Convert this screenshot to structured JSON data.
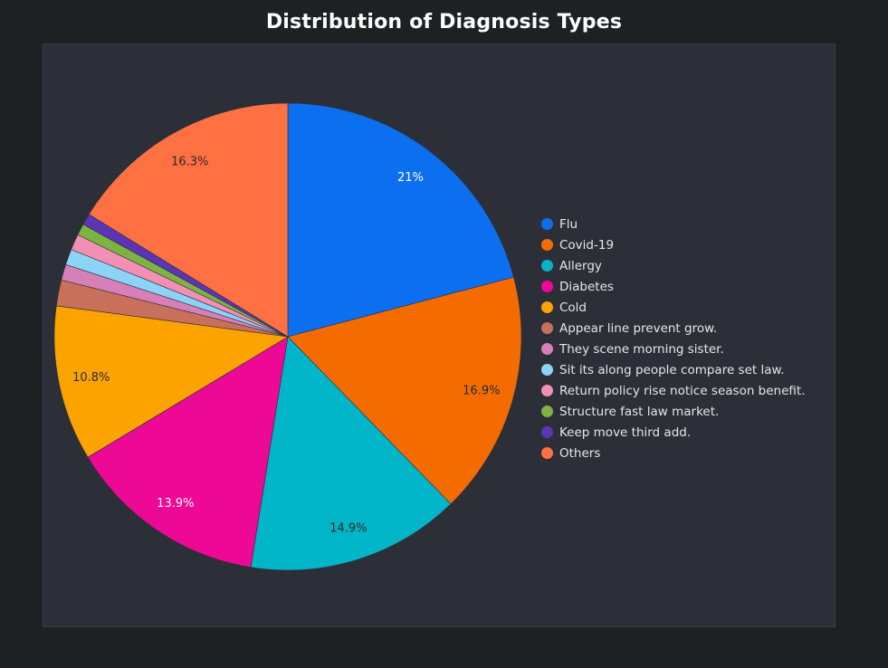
{
  "chart_data": {
    "type": "pie",
    "title": "Distribution of Diagnosis Types",
    "legend_position": "right",
    "slices": [
      {
        "label": "Flu",
        "value": 21.0,
        "display": "21%",
        "color": "#0b6ff0",
        "text_color": "#ffffff"
      },
      {
        "label": "Covid-19",
        "value": 16.9,
        "display": "16.9%",
        "color": "#f46c00",
        "text_color": "#2a2a2a"
      },
      {
        "label": "Allergy",
        "value": 14.9,
        "display": "14.9%",
        "color": "#00b5c8",
        "text_color": "#2a2a2a"
      },
      {
        "label": "Diabetes",
        "value": 13.9,
        "display": "13.9%",
        "color": "#ee0896",
        "text_color": "#ffffff"
      },
      {
        "label": "Cold",
        "value": 10.8,
        "display": "10.8%",
        "color": "#fca300",
        "text_color": "#2a2a2a"
      },
      {
        "label": "Appear line prevent grow.",
        "value": 1.8,
        "display": "",
        "color": "#c8705a",
        "text_color": "#2a2a2a"
      },
      {
        "label": "They scene morning sister.",
        "value": 1.1,
        "display": "",
        "color": "#d580b8",
        "text_color": "#2a2a2a"
      },
      {
        "label": "Sit its along people compare set law.",
        "value": 1.1,
        "display": "",
        "color": "#8dd3f6",
        "text_color": "#2a2a2a"
      },
      {
        "label": "Return policy rise notice season benefit.",
        "value": 1.1,
        "display": "",
        "color": "#f28fb5",
        "text_color": "#2a2a2a"
      },
      {
        "label": "Structure fast law market.",
        "value": 0.8,
        "display": "",
        "color": "#7cb342",
        "text_color": "#2a2a2a"
      },
      {
        "label": "Keep move third add.",
        "value": 0.8,
        "display": "",
        "color": "#5c35b5",
        "text_color": "#2a2a2a"
      },
      {
        "label": "Others",
        "value": 16.3,
        "display": "16.3%",
        "color": "#ff7043",
        "text_color": "#2a2a2a"
      }
    ]
  }
}
